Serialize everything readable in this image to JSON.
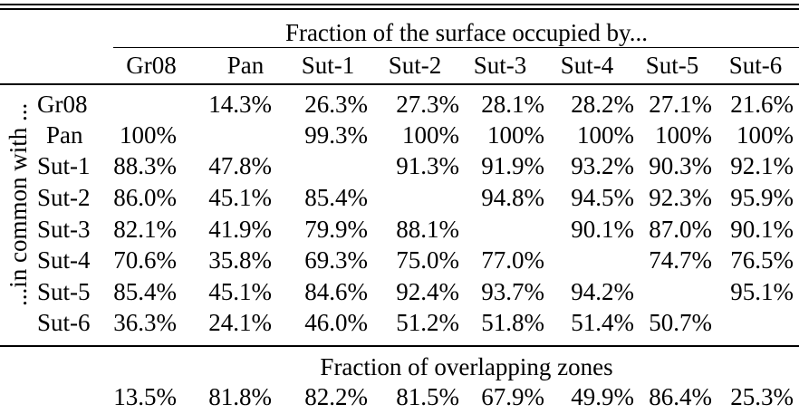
{
  "table": {
    "header": {
      "spanner": "Fraction of the surface occupied by...",
      "columns": [
        "Gr08",
        "Pan",
        "Sut-1",
        "Sut-2",
        "Sut-3",
        "Sut-4",
        "Sut-5",
        "Sut-6"
      ]
    },
    "side_label": "...in common with ...",
    "rows": [
      {
        "label": "Gr08",
        "cells": [
          "",
          "14.3%",
          "26.3%",
          "27.3%",
          "28.1%",
          "28.2%",
          "27.1%",
          "21.6%"
        ]
      },
      {
        "label": "Pan",
        "cells": [
          "100%",
          "",
          "99.3%",
          "100%",
          "100%",
          "100%",
          "100%",
          "100%"
        ]
      },
      {
        "label": "Sut-1",
        "cells": [
          "88.3%",
          "47.8%",
          "",
          "91.3%",
          "91.9%",
          "93.2%",
          "90.3%",
          "92.1%"
        ]
      },
      {
        "label": "Sut-2",
        "cells": [
          "86.0%",
          "45.1%",
          "85.4%",
          "",
          "94.8%",
          "94.5%",
          "92.3%",
          "95.9%"
        ]
      },
      {
        "label": "Sut-3",
        "cells": [
          "82.1%",
          "41.9%",
          "79.9%",
          "88.1%",
          "",
          "90.1%",
          "87.0%",
          "90.1%"
        ]
      },
      {
        "label": "Sut-4",
        "cells": [
          "70.6%",
          "35.8%",
          "69.3%",
          "75.0%",
          "77.0%",
          "",
          "74.7%",
          "76.5%"
        ]
      },
      {
        "label": "Sut-5",
        "cells": [
          "85.4%",
          "45.1%",
          "84.6%",
          "92.4%",
          "93.7%",
          "94.2%",
          "",
          "95.1%"
        ]
      },
      {
        "label": "Sut-6",
        "cells": [
          "36.3%",
          "24.1%",
          "46.0%",
          "51.2%",
          "51.8%",
          "51.4%",
          "50.7%",
          ""
        ]
      }
    ],
    "overlap": {
      "title": "Fraction of overlapping zones",
      "values": [
        "13.5%",
        "81.8%",
        "82.2%",
        "81.5%",
        "67.9%",
        "49.9%",
        "86.4%",
        "25.3%"
      ]
    }
  }
}
